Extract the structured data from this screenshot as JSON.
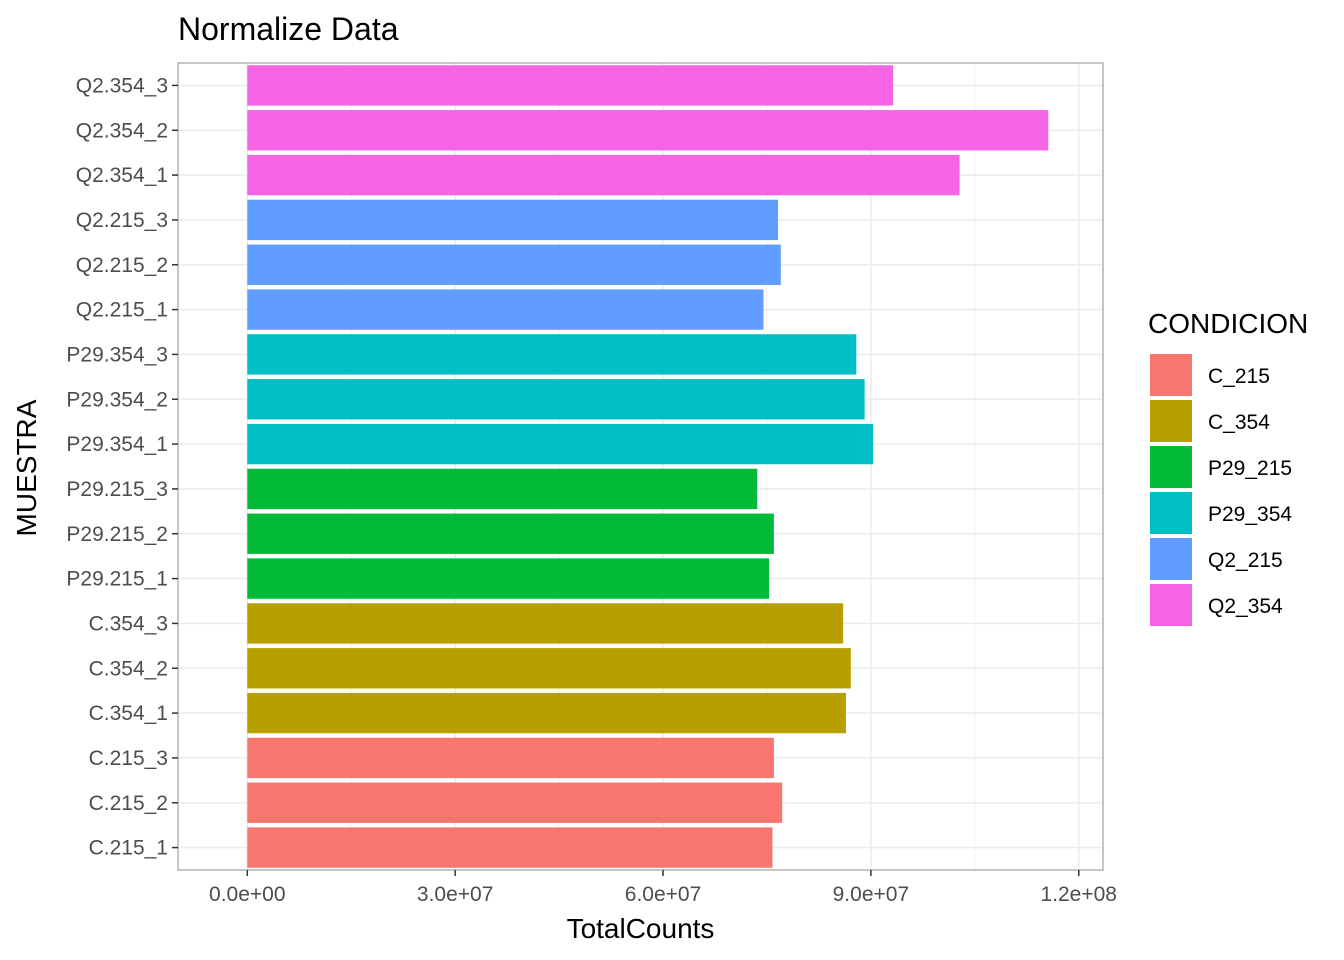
{
  "chart_data": {
    "type": "bar",
    "orientation": "horizontal",
    "title": "Normalize Data",
    "xlabel": "TotalCounts",
    "ylabel": "MUESTRA",
    "xlim": [
      -10000000,
      123500000
    ],
    "x_ticks": [
      0,
      30000000,
      60000000,
      90000000,
      120000000
    ],
    "x_tick_labels": [
      "0.0e+00",
      "3.0e+07",
      "6.0e+07",
      "9.0e+07",
      "1.2e+08"
    ],
    "grid": true,
    "legend_position": "right",
    "legend_title": "CONDICION",
    "legend": [
      {
        "name": "C_215",
        "color": "#F8766D"
      },
      {
        "name": "C_354",
        "color": "#B79F00"
      },
      {
        "name": "P29_215",
        "color": "#00BA38"
      },
      {
        "name": "P29_354",
        "color": "#00BFC4"
      },
      {
        "name": "Q2_215",
        "color": "#619CFF"
      },
      {
        "name": "Q2_354",
        "color": "#F564E3"
      }
    ],
    "categories": [
      "C.215_1",
      "C.215_2",
      "C.215_3",
      "C.354_1",
      "C.354_2",
      "C.354_3",
      "P29.215_1",
      "P29.215_2",
      "P29.215_3",
      "P29.354_1",
      "P29.354_2",
      "P29.354_3",
      "Q2.215_1",
      "Q2.215_2",
      "Q2.215_3",
      "Q2.354_1",
      "Q2.354_2",
      "Q2.354_3"
    ],
    "values": [
      75800000,
      77200000,
      76000000,
      86400000,
      87100000,
      86000000,
      75300000,
      76000000,
      73600000,
      90300000,
      89100000,
      87900000,
      74500000,
      77000000,
      76600000,
      102800000,
      115600000,
      93200000
    ],
    "groups": [
      "C_215",
      "C_215",
      "C_215",
      "C_354",
      "C_354",
      "C_354",
      "P29_215",
      "P29_215",
      "P29_215",
      "P29_354",
      "P29_354",
      "P29_354",
      "Q2_215",
      "Q2_215",
      "Q2_215",
      "Q2_354",
      "Q2_354",
      "Q2_354"
    ]
  }
}
